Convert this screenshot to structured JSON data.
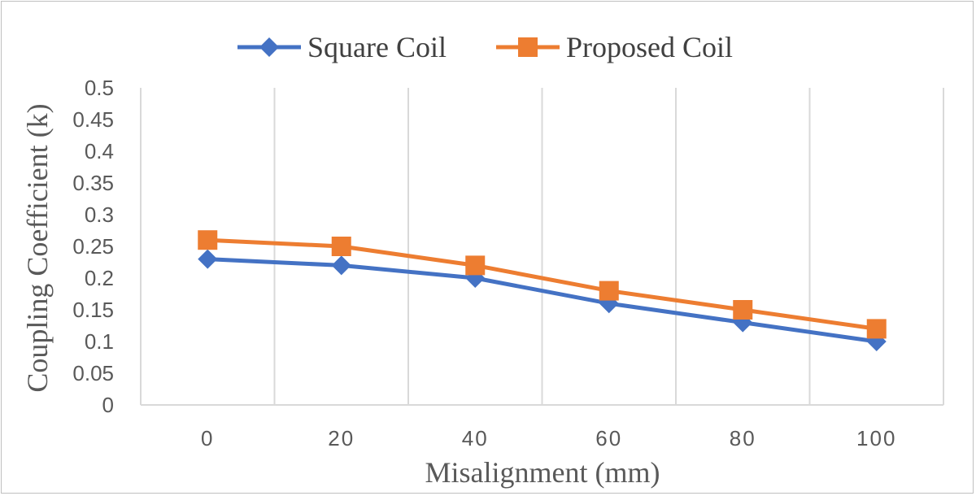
{
  "chart_data": {
    "type": "line",
    "xlabel": "Misalignment (mm)",
    "ylabel": "Coupling Coefficient (k)",
    "x": [
      0,
      20,
      40,
      60,
      80,
      100
    ],
    "categories": [
      "0",
      "20",
      "40",
      "60",
      "80",
      "100"
    ],
    "ylim": [
      0,
      0.5
    ],
    "yticks": [
      "0",
      "0.05",
      "0.1",
      "0.15",
      "0.2",
      "0.25",
      "0.3",
      "0.35",
      "0.4",
      "0.45",
      "0.5"
    ],
    "grid": "vertical",
    "legend_position": "top",
    "series": [
      {
        "name": "Square Coil",
        "values": [
          0.23,
          0.22,
          0.2,
          0.16,
          0.13,
          0.1
        ],
        "color": "#4472C4",
        "marker": "diamond"
      },
      {
        "name": "Proposed Coil",
        "values": [
          0.26,
          0.25,
          0.22,
          0.18,
          0.15,
          0.12
        ],
        "color": "#ED7D31",
        "marker": "square"
      }
    ]
  }
}
